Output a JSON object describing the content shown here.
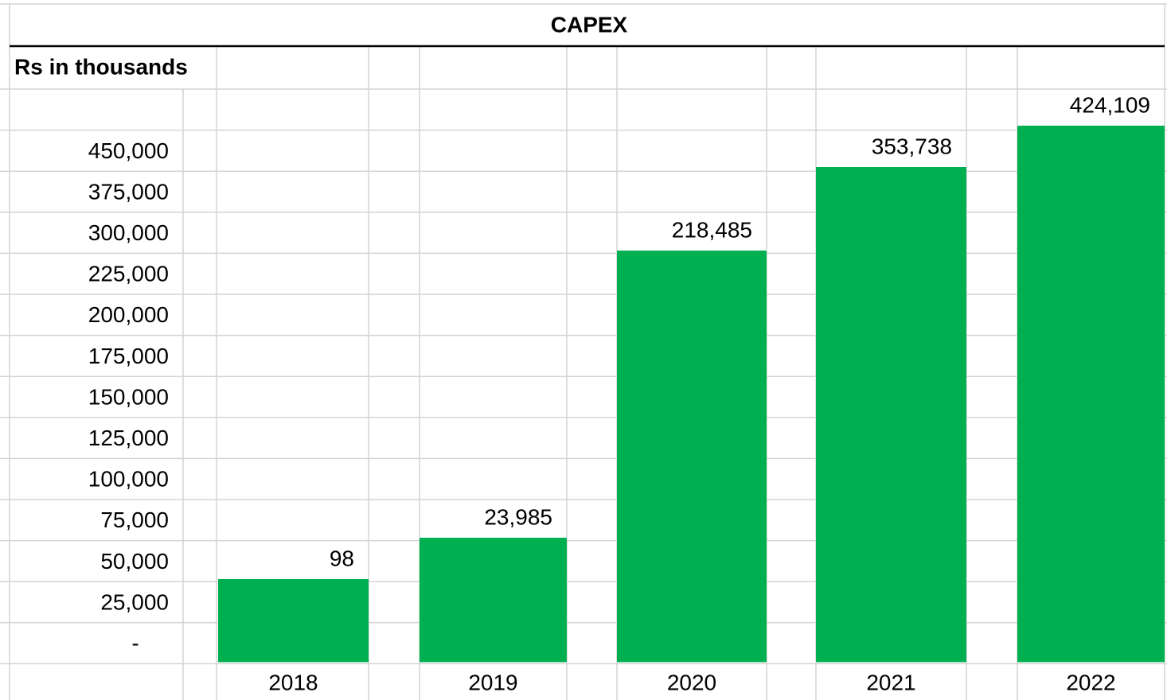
{
  "title": "CAPEX",
  "unit_label": "Rs in thousands",
  "row_labels": [
    "450,000",
    "375,000",
    "300,000",
    "225,000",
    "200,000",
    "175,000",
    "150,000",
    "125,000",
    "100,000",
    "75,000",
    "50,000",
    "25,000",
    "-"
  ],
  "columns": [
    {
      "year": "2018",
      "value": "98"
    },
    {
      "year": "2019",
      "value": "23,985"
    },
    {
      "year": "2020",
      "value": "218,485"
    },
    {
      "year": "2021",
      "value": "353,738"
    },
    {
      "year": "2022",
      "value": "424,109"
    }
  ]
}
